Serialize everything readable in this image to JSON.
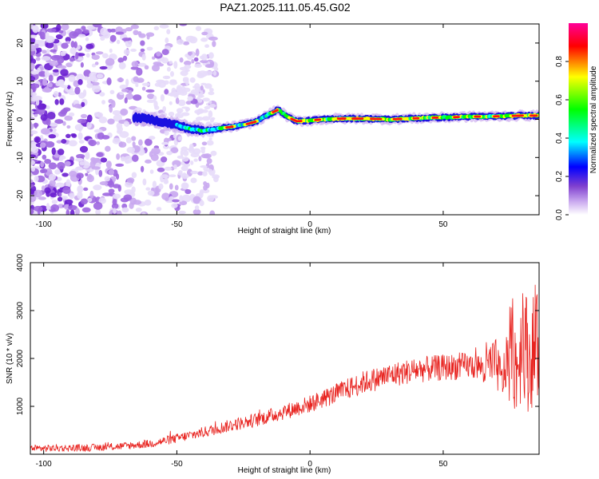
{
  "figure": {
    "title": "PAZ1.2025.111.05.45.G02"
  },
  "chart_data": [
    {
      "type": "heatmap",
      "xlabel": "Height of straight line (km)",
      "ylabel": "Frequency (Hz)",
      "xlim": [
        -105,
        86
      ],
      "ylim": [
        -25,
        25
      ],
      "x_ticks": [
        -100,
        -50,
        0,
        50
      ],
      "y_ticks": [
        -20,
        -10,
        0,
        10,
        20
      ],
      "colorbar": {
        "label": "Normalized spectral amplitude",
        "range": [
          0,
          1
        ],
        "ticks": [
          0.0,
          0.2,
          0.4,
          0.6,
          0.8
        ],
        "colormap": [
          "#ffffff",
          "#7f3fcf",
          "#0000ff",
          "#00ffff",
          "#00ff00",
          "#ffff00",
          "#ff0000",
          "#ff00aa"
        ]
      },
      "ridge": {
        "description_points_x": [
          -65,
          -60,
          -55,
          -50,
          -45,
          -40,
          -35,
          -30,
          -25,
          -20,
          -15,
          -12,
          -8,
          -5,
          0,
          5,
          10,
          20,
          30,
          40,
          50,
          60,
          70,
          80,
          86
        ],
        "description_points_y": [
          0.5,
          0,
          -0.8,
          -1.5,
          -2.5,
          -3,
          -2.5,
          -2,
          -1.5,
          -0.5,
          1.5,
          2.5,
          0.5,
          -0.5,
          -0.3,
          0,
          0.2,
          0.2,
          0,
          0.3,
          0.5,
          0.7,
          0.8,
          1,
          1
        ]
      }
    },
    {
      "type": "line",
      "xlabel": "Height of straight line (km)",
      "ylabel": "SNR (10 * v/v)",
      "xlim": [
        -105,
        86
      ],
      "ylim": [
        0,
        4000
      ],
      "x_ticks": [
        -100,
        -50,
        0,
        50
      ],
      "y_ticks": [
        1000,
        2000,
        3000,
        4000
      ],
      "series": [
        {
          "color": "#e8231f",
          "x": [
            -105,
            -90,
            -80,
            -70,
            -60,
            -50,
            -40,
            -30,
            -20,
            -10,
            0,
            10,
            20,
            30,
            40,
            50,
            55,
            60,
            65,
            70,
            72,
            75,
            78,
            80,
            82,
            84,
            86
          ],
          "y": [
            120,
            130,
            140,
            170,
            220,
            330,
            460,
            600,
            720,
            880,
            1050,
            1270,
            1500,
            1650,
            1760,
            1810,
            1830,
            1850,
            1820,
            1880,
            1500,
            2200,
            1800,
            2700,
            1900,
            2200,
            2150
          ]
        }
      ]
    }
  ]
}
